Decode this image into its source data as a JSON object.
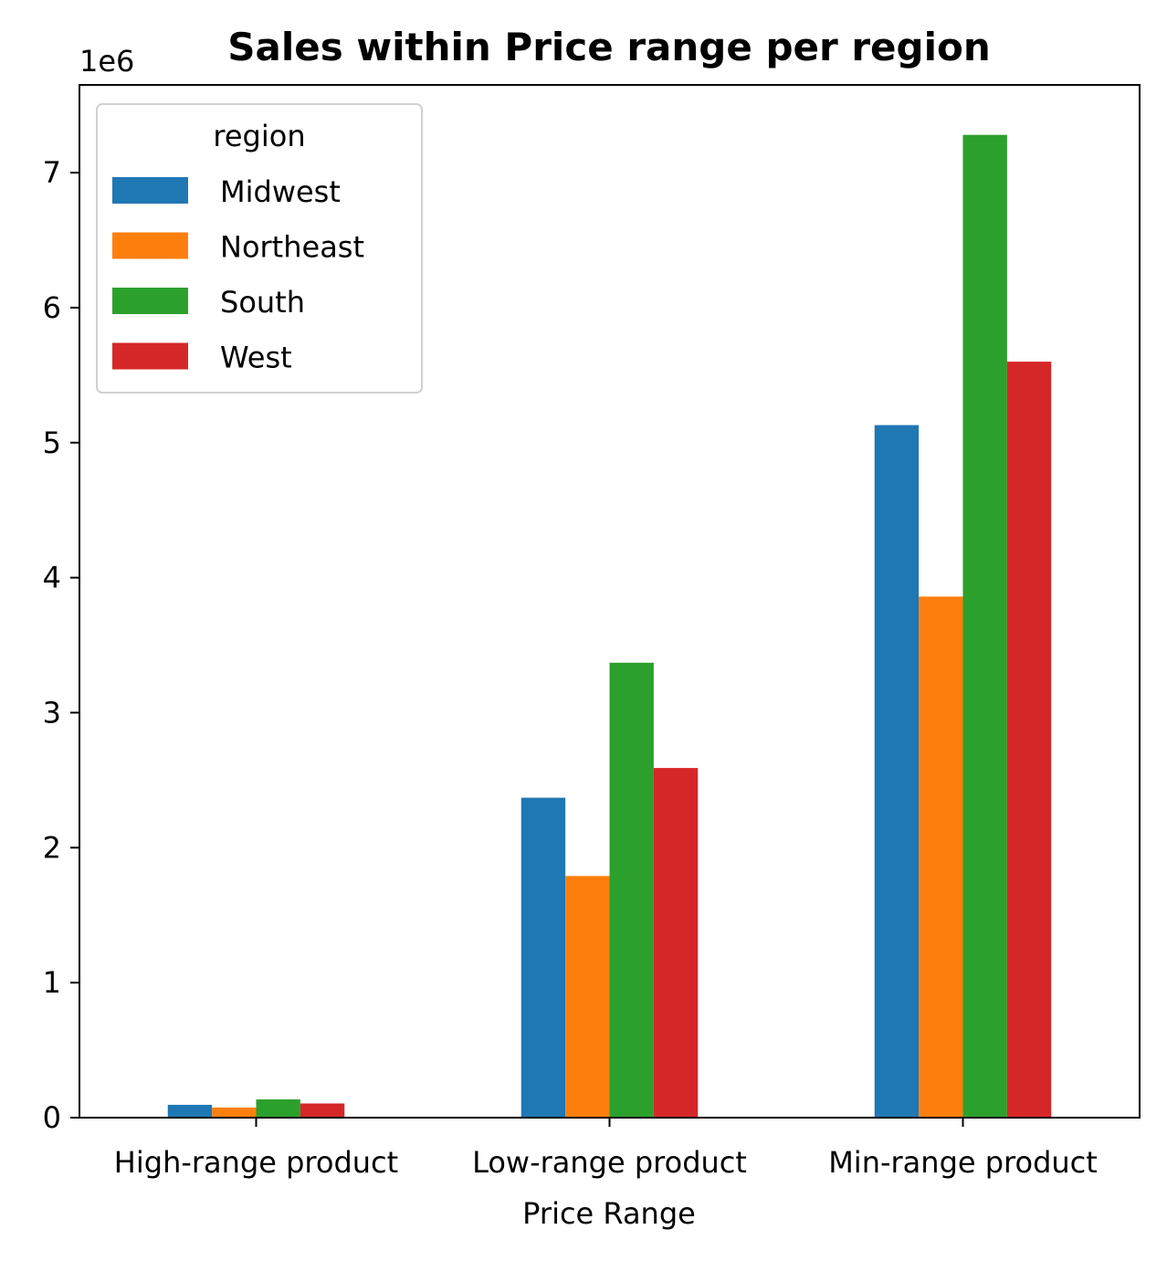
{
  "chart_data": {
    "type": "bar",
    "title": "Sales within Price range per region",
    "xlabel": "Price Range",
    "ylabel": "",
    "y_offset_label": "1e6",
    "y_scale_factor": 1000000,
    "categories": [
      "High-range product",
      "Low-range product",
      "Min-range product"
    ],
    "series": [
      {
        "name": "Midwest",
        "color": "#1f77b4",
        "values": [
          95000,
          2370000,
          5130000
        ]
      },
      {
        "name": "Northeast",
        "color": "#ff7f0e",
        "values": [
          75000,
          1790000,
          3860000
        ]
      },
      {
        "name": "South",
        "color": "#2ca02c",
        "values": [
          135000,
          3370000,
          7280000
        ]
      },
      {
        "name": "West",
        "color": "#d62728",
        "values": [
          105000,
          2590000,
          5600000
        ]
      }
    ],
    "ylim": [
      0,
      7650000
    ],
    "yticks": [
      0,
      1,
      2,
      3,
      4,
      5,
      6,
      7
    ],
    "legend": {
      "title": "region",
      "placement": "top-left"
    },
    "grid": false
  }
}
